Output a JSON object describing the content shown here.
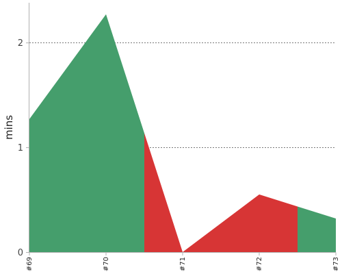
{
  "chart_data": {
    "type": "area",
    "ylabel": "mins",
    "xlabel": "",
    "categories": [
      "#69",
      "#70",
      "#71",
      "#72",
      "#73"
    ],
    "values": [
      1.27,
      2.27,
      0.0,
      0.55,
      0.32
    ],
    "ylim": [
      0,
      2.38
    ],
    "yticks": [
      0,
      1,
      2
    ],
    "grid": true,
    "segment_status": [
      "success",
      "failure",
      "failure",
      "failure",
      "success"
    ],
    "segments": [
      {
        "from": 0,
        "to": 1.5,
        "status": "success"
      },
      {
        "from": 1.5,
        "to": 3.5,
        "status": "failure"
      },
      {
        "from": 3.5,
        "to": 4,
        "status": "success"
      }
    ],
    "colors": {
      "success": "#459e6c",
      "failure": "#d73535"
    }
  }
}
